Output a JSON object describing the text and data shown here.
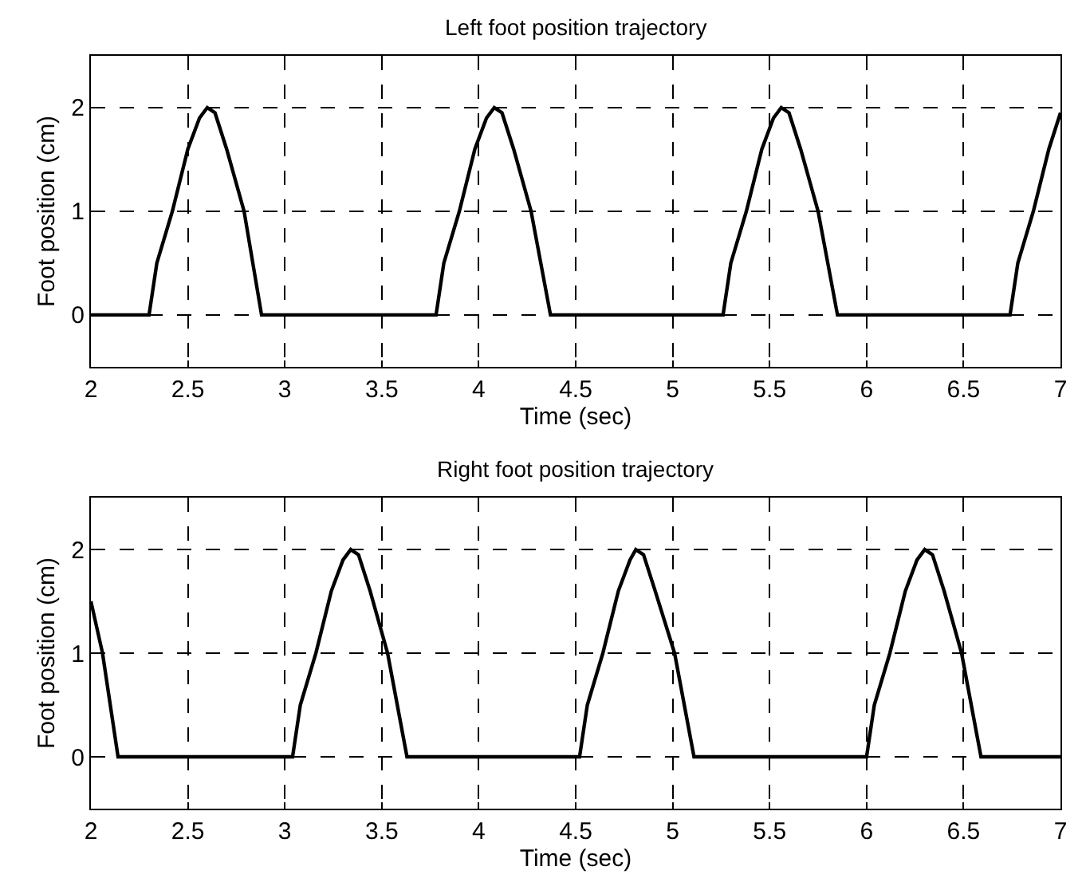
{
  "chart_data": [
    {
      "type": "line",
      "title": "Left foot position trajectory",
      "xlabel": "Time (sec)",
      "ylabel": "Foot position (cm)",
      "xlim": [
        2,
        7
      ],
      "ylim": [
        -0.5,
        2.5
      ],
      "xticks": [
        2,
        2.5,
        3,
        3.5,
        4,
        4.5,
        5,
        5.5,
        6,
        6.5,
        7
      ],
      "yticks": [
        0,
        1,
        2
      ],
      "grid": true,
      "line_style": "solid",
      "series": [
        {
          "color": "#000000",
          "x": [
            2.0,
            2.3,
            2.34,
            2.42,
            2.5,
            2.56,
            2.6,
            2.64,
            2.7,
            2.79,
            2.88,
            3.78,
            3.82,
            3.9,
            3.98,
            4.04,
            4.08,
            4.12,
            4.18,
            4.27,
            4.37,
            5.26,
            5.3,
            5.38,
            5.46,
            5.52,
            5.56,
            5.6,
            5.66,
            5.75,
            5.85,
            6.74,
            6.78,
            6.86,
            6.94,
            7.0
          ],
          "values": [
            0,
            0,
            0.5,
            1.0,
            1.6,
            1.9,
            2.0,
            1.95,
            1.6,
            1.0,
            0,
            0,
            0.5,
            1.0,
            1.6,
            1.9,
            2.0,
            1.95,
            1.6,
            1.0,
            0,
            0,
            0.5,
            1.0,
            1.6,
            1.9,
            2.0,
            1.95,
            1.6,
            1.0,
            0,
            0,
            0.5,
            1.0,
            1.6,
            1.95
          ]
        }
      ]
    },
    {
      "type": "line",
      "title": "Right foot position trajectory",
      "xlabel": "Time (sec)",
      "ylabel": "Foot position (cm)",
      "xlim": [
        2,
        7
      ],
      "ylim": [
        -0.5,
        2.5
      ],
      "xticks": [
        2,
        2.5,
        3,
        3.5,
        4,
        4.5,
        5,
        5.5,
        6,
        6.5,
        7
      ],
      "yticks": [
        0,
        1,
        2
      ],
      "grid": true,
      "line_style": "solid",
      "series": [
        {
          "color": "#000000",
          "x": [
            2.0,
            2.06,
            2.14,
            3.04,
            3.08,
            3.16,
            3.24,
            3.3,
            3.34,
            3.38,
            3.44,
            3.53,
            3.63,
            4.52,
            4.56,
            4.64,
            4.72,
            4.78,
            4.81,
            4.85,
            4.91,
            5.01,
            5.11,
            6.0,
            6.04,
            6.12,
            6.2,
            6.26,
            6.3,
            6.34,
            6.4,
            6.49,
            6.59,
            7.0
          ],
          "values": [
            1.5,
            1.0,
            0,
            0,
            0.5,
            1.0,
            1.6,
            1.9,
            2.0,
            1.95,
            1.6,
            1.0,
            0,
            0,
            0.5,
            1.0,
            1.6,
            1.9,
            2.0,
            1.95,
            1.6,
            1.0,
            0,
            0,
            0.5,
            1.0,
            1.6,
            1.9,
            2.0,
            1.95,
            1.6,
            1.0,
            0,
            0
          ]
        }
      ]
    }
  ]
}
